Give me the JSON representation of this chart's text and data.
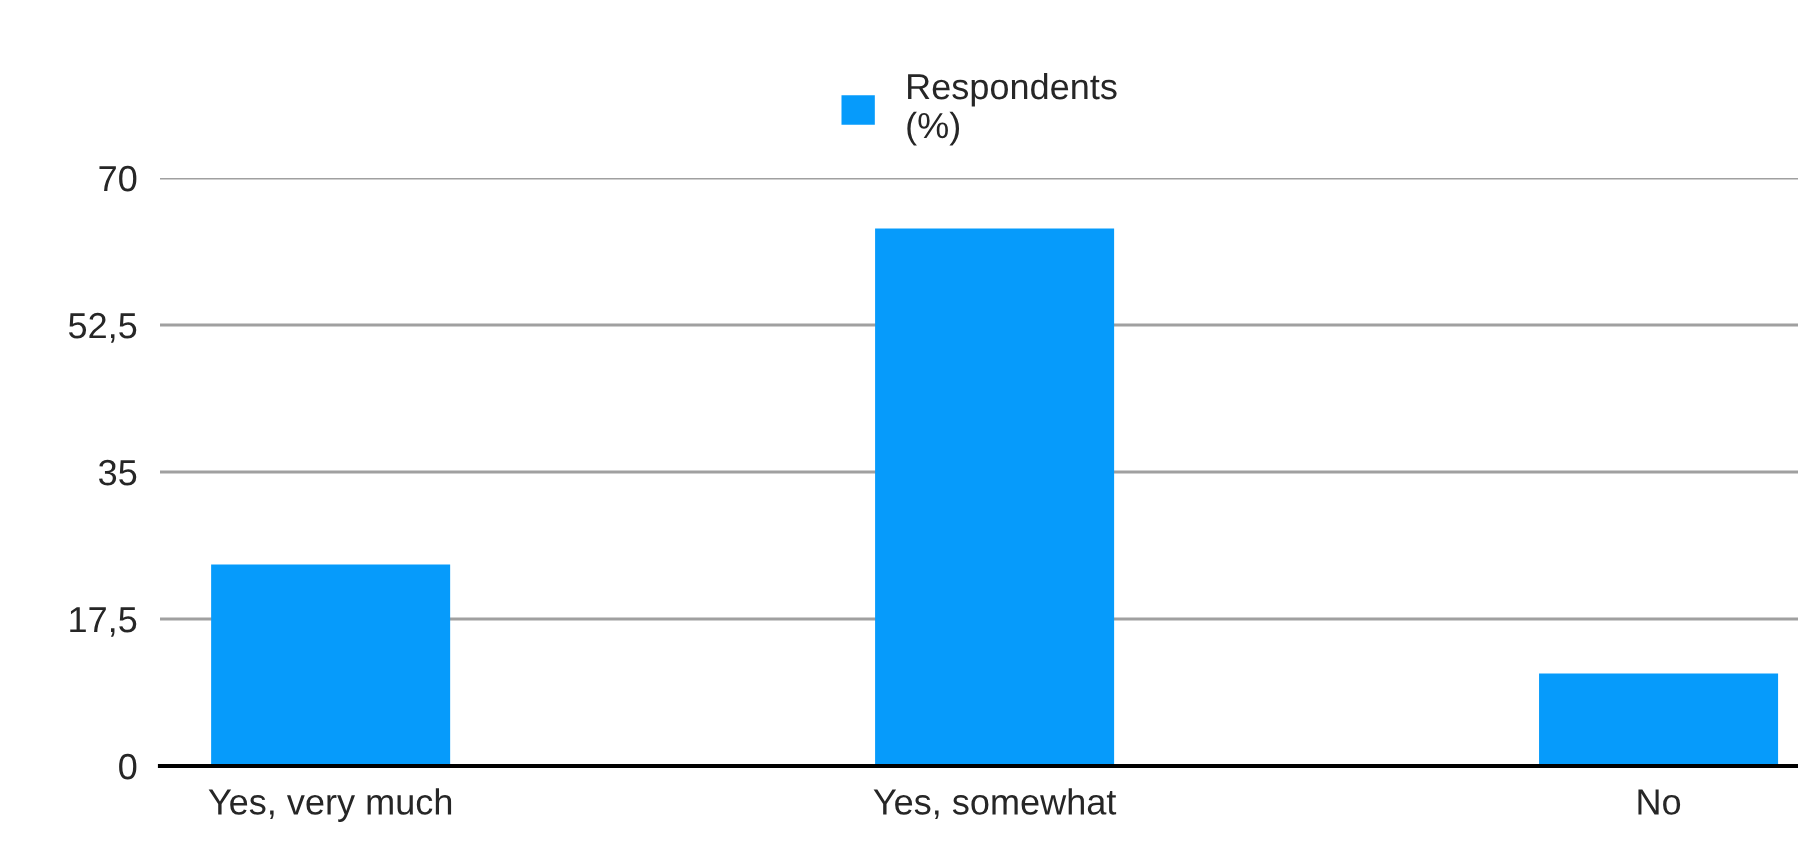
{
  "chart_data": {
    "type": "bar",
    "categories": [
      "Yes, very much",
      "Yes, somewhat",
      "No"
    ],
    "series": [
      {
        "name": "Respondents\n(%)",
        "color": "#069bfb",
        "values": [
          24,
          64,
          11
        ]
      }
    ],
    "ylim": [
      0,
      70
    ],
    "yticks": [
      0,
      {
        "value": 17.5,
        "label": "17,5"
      },
      35,
      {
        "value": 52.5,
        "label": "52,5"
      },
      70
    ],
    "grid": "y",
    "legend": "top"
  }
}
